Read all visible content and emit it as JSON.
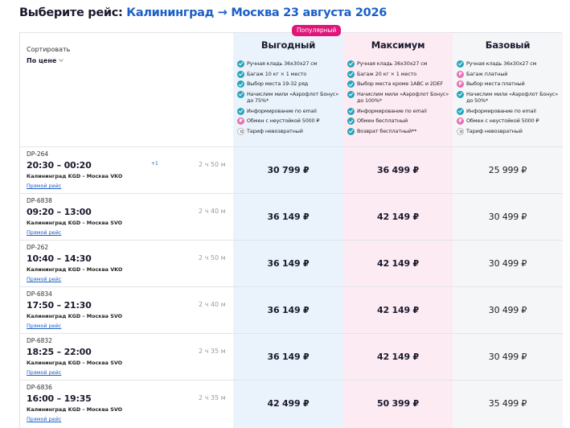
{
  "header": {
    "prefix": "Выберите рейс:",
    "route": "Калининград → Москва 23 августа 2026"
  },
  "sort": {
    "label": "Сортировать",
    "value": "По цене"
  },
  "popular_badge": "Популярный",
  "colors": {
    "accent": "#1b5fc7",
    "pink": "#e0157a",
    "col_a": "#eaf3fc",
    "col_b": "#fdebf3",
    "col_c": "#f5f6f8"
  },
  "tariffs": [
    {
      "name": "Выгодный",
      "features": [
        {
          "icon": "check",
          "text": "Ручная кладь 36х30х27 см"
        },
        {
          "icon": "check",
          "text": "Багаж 10 кг × 1 место"
        },
        {
          "icon": "check",
          "text": "Выбор места 19-32 ряд"
        },
        {
          "icon": "check",
          "text": "Начислим мили «Аэрофлот Бонус» до 75%*"
        },
        {
          "icon": "check",
          "text": "Информирование по email"
        },
        {
          "icon": "paid",
          "text": "Обмен с неустойкой 5000 ₽"
        },
        {
          "icon": "no",
          "text": "Тариф невозвратный"
        }
      ]
    },
    {
      "name": "Максимум",
      "features": [
        {
          "icon": "check",
          "text": "Ручная кладь 36х30х27 см"
        },
        {
          "icon": "check",
          "text": "Багаж 20 кг × 1 место"
        },
        {
          "icon": "check",
          "text": "Выбор места кроме 1ABC и 2DEF"
        },
        {
          "icon": "check",
          "text": "Начислим мили «Аэрофлот Бонус» до 100%*"
        },
        {
          "icon": "check",
          "text": "Информирование по email"
        },
        {
          "icon": "check",
          "text": "Обмен бесплатный"
        },
        {
          "icon": "check",
          "text": "Возврат бесплатный**"
        }
      ]
    },
    {
      "name": "Базовый",
      "features": [
        {
          "icon": "check",
          "text": "Ручная кладь 36х30х27 см"
        },
        {
          "icon": "paid",
          "text": "Багаж платный"
        },
        {
          "icon": "paid",
          "text": "Выбор места платный"
        },
        {
          "icon": "check",
          "text": "Начислим мили «Аэрофлот Бонус» до 50%*"
        },
        {
          "icon": "check",
          "text": "Информирование по email"
        },
        {
          "icon": "paid",
          "text": "Обмен с неустойкой 5000 ₽"
        },
        {
          "icon": "no",
          "text": "Тариф невозвратный"
        }
      ]
    }
  ],
  "flights": [
    {
      "number": "DP-264",
      "time": "20:30 – 00:20",
      "plus": "+1",
      "route": "Калининград KGD – Москва VKO",
      "direct": "Прямой рейс",
      "duration": "2 ч 50 м",
      "prices": [
        "30 799 ₽",
        "36 499 ₽",
        "25 999 ₽"
      ]
    },
    {
      "number": "DP-6838",
      "time": "09:20 – 13:00",
      "plus": "",
      "route": "Калининград KGD – Москва SVO",
      "direct": "Прямой рейс",
      "duration": "2 ч 40 м",
      "prices": [
        "36 149 ₽",
        "42 149 ₽",
        "30 499 ₽"
      ]
    },
    {
      "number": "DP-262",
      "time": "10:40 – 14:30",
      "plus": "",
      "route": "Калининград KGD – Москва VKO",
      "direct": "Прямой рейс",
      "duration": "2 ч 50 м",
      "prices": [
        "36 149 ₽",
        "42 149 ₽",
        "30 499 ₽"
      ]
    },
    {
      "number": "DP-6834",
      "time": "17:50 – 21:30",
      "plus": "",
      "route": "Калининград KGD – Москва SVO",
      "direct": "Прямой рейс",
      "duration": "2 ч 40 м",
      "prices": [
        "36 149 ₽",
        "42 149 ₽",
        "30 499 ₽"
      ]
    },
    {
      "number": "DP-6832",
      "time": "18:25 – 22:00",
      "plus": "",
      "route": "Калининград KGD – Москва SVO",
      "direct": "Прямой рейс",
      "duration": "2 ч 35 м",
      "prices": [
        "36 149 ₽",
        "42 149 ₽",
        "30 499 ₽"
      ]
    },
    {
      "number": "DP-6836",
      "time": "16:00 – 19:35",
      "plus": "",
      "route": "Калининград KGD – Москва SVO",
      "direct": "Прямой рейс",
      "duration": "2 ч 35 м",
      "prices": [
        "42 499 ₽",
        "50 399 ₽",
        "35 499 ₽"
      ]
    }
  ]
}
